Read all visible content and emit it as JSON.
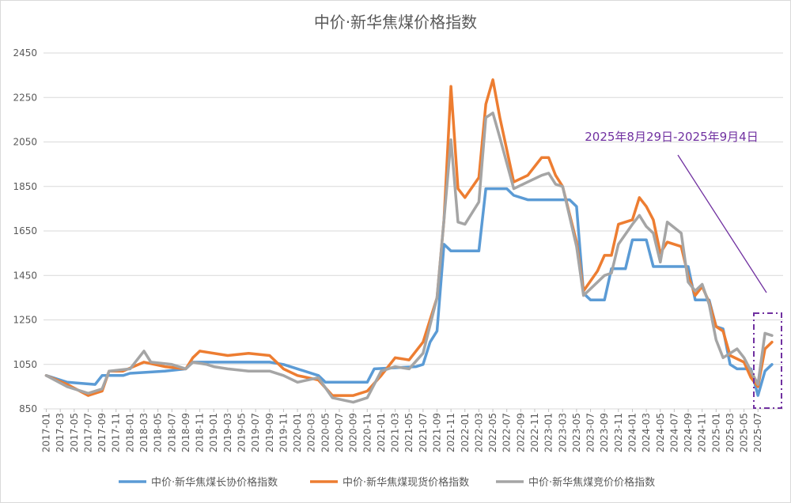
{
  "chart_data": {
    "type": "line",
    "title": "中价·新华焦煤价格指数",
    "xlabel": "",
    "ylabel": "",
    "ylim": [
      850,
      2450
    ],
    "yticks": [
      850,
      1050,
      1250,
      1450,
      1650,
      1850,
      2050,
      2250,
      2450
    ],
    "grid": "horizontal",
    "legend_position": "bottom",
    "x_ticks": [
      "2017-01",
      "2017-03",
      "2017-05",
      "2017-07",
      "2017-09",
      "2017-11",
      "2018-01",
      "2018-03",
      "2018-05",
      "2018-07",
      "2018-09",
      "2018-11",
      "2019-01",
      "2019-03",
      "2019-05",
      "2019-07",
      "2019-09",
      "2019-11",
      "2020-01",
      "2020-03",
      "2020-05",
      "2020-07",
      "2020-09",
      "2020-11",
      "2021-01",
      "2021-03",
      "2021-05",
      "2021-07",
      "2021-09",
      "2021-11",
      "2022-01",
      "2022-03",
      "2022-05",
      "2022-07",
      "2022-09",
      "2022-11",
      "2023-01",
      "2023-03",
      "2023-05",
      "2023-07",
      "2023-09",
      "2023-11",
      "2024-01",
      "2024-03",
      "2024-05",
      "2024-07",
      "2024-09",
      "2024-11",
      "2025-01",
      "2025-03",
      "2025-05",
      "2025-07"
    ],
    "annotation": "2025年8月29日-2025年9月4日",
    "series": [
      {
        "name": "中价·新华焦煤长协价格指数",
        "color": "#5B9BD5",
        "points": [
          [
            "2017-01",
            1000
          ],
          [
            "2017-04",
            970
          ],
          [
            "2017-08",
            960
          ],
          [
            "2017-09",
            1000
          ],
          [
            "2017-12",
            1000
          ],
          [
            "2018-01",
            1010
          ],
          [
            "2018-06",
            1020
          ],
          [
            "2018-09",
            1030
          ],
          [
            "2018-10",
            1060
          ],
          [
            "2019-06",
            1060
          ],
          [
            "2019-09",
            1060
          ],
          [
            "2019-11",
            1050
          ],
          [
            "2020-01",
            1030
          ],
          [
            "2020-04",
            1000
          ],
          [
            "2020-05",
            970
          ],
          [
            "2020-11",
            970
          ],
          [
            "2020-12",
            1030
          ],
          [
            "2021-06",
            1040
          ],
          [
            "2021-07",
            1050
          ],
          [
            "2021-08",
            1150
          ],
          [
            "2021-09",
            1200
          ],
          [
            "2021-10",
            1590
          ],
          [
            "2021-11",
            1560
          ],
          [
            "2022-03",
            1560
          ],
          [
            "2022-04",
            1840
          ],
          [
            "2022-07",
            1840
          ],
          [
            "2022-08",
            1810
          ],
          [
            "2022-10",
            1790
          ],
          [
            "2023-04",
            1790
          ],
          [
            "2023-05",
            1760
          ],
          [
            "2023-06",
            1370
          ],
          [
            "2023-07",
            1340
          ],
          [
            "2023-09",
            1340
          ],
          [
            "2023-10",
            1480
          ],
          [
            "2023-12",
            1480
          ],
          [
            "2024-01",
            1610
          ],
          [
            "2024-03",
            1610
          ],
          [
            "2024-04",
            1490
          ],
          [
            "2024-09",
            1490
          ],
          [
            "2024-10",
            1340
          ],
          [
            "2024-12",
            1340
          ],
          [
            "2025-01",
            1220
          ],
          [
            "2025-02",
            1210
          ],
          [
            "2025-03",
            1050
          ],
          [
            "2025-04",
            1030
          ],
          [
            "2025-06",
            1030
          ],
          [
            "2025-07",
            910
          ],
          [
            "2025-08",
            1020
          ],
          [
            "2025-09",
            1050
          ]
        ]
      },
      {
        "name": "中价·新华焦煤现货价格指数",
        "color": "#ED7D31",
        "points": [
          [
            "2017-01",
            1000
          ],
          [
            "2017-04",
            960
          ],
          [
            "2017-07",
            910
          ],
          [
            "2017-09",
            930
          ],
          [
            "2017-10",
            1020
          ],
          [
            "2017-12",
            1020
          ],
          [
            "2018-03",
            1060
          ],
          [
            "2018-06",
            1040
          ],
          [
            "2018-09",
            1030
          ],
          [
            "2018-10",
            1080
          ],
          [
            "2018-11",
            1110
          ],
          [
            "2019-03",
            1090
          ],
          [
            "2019-06",
            1100
          ],
          [
            "2019-09",
            1090
          ],
          [
            "2019-11",
            1030
          ],
          [
            "2020-01",
            1000
          ],
          [
            "2020-04",
            980
          ],
          [
            "2020-06",
            910
          ],
          [
            "2020-09",
            910
          ],
          [
            "2020-11",
            930
          ],
          [
            "2021-01",
            1000
          ],
          [
            "2021-03",
            1080
          ],
          [
            "2021-05",
            1070
          ],
          [
            "2021-07",
            1150
          ],
          [
            "2021-09",
            1350
          ],
          [
            "2021-10",
            1700
          ],
          [
            "2021-11",
            2300
          ],
          [
            "2021-12",
            1840
          ],
          [
            "2022-01",
            1800
          ],
          [
            "2022-03",
            1890
          ],
          [
            "2022-04",
            2220
          ],
          [
            "2022-05",
            2330
          ],
          [
            "2022-06",
            2160
          ],
          [
            "2022-08",
            1870
          ],
          [
            "2022-10",
            1900
          ],
          [
            "2022-12",
            1980
          ],
          [
            "2023-01",
            1980
          ],
          [
            "2023-02",
            1900
          ],
          [
            "2023-03",
            1850
          ],
          [
            "2023-05",
            1600
          ],
          [
            "2023-06",
            1380
          ],
          [
            "2023-08",
            1470
          ],
          [
            "2023-09",
            1540
          ],
          [
            "2023-10",
            1540
          ],
          [
            "2023-11",
            1680
          ],
          [
            "2024-01",
            1700
          ],
          [
            "2024-02",
            1800
          ],
          [
            "2024-03",
            1760
          ],
          [
            "2024-04",
            1700
          ],
          [
            "2024-05",
            1550
          ],
          [
            "2024-06",
            1600
          ],
          [
            "2024-08",
            1580
          ],
          [
            "2024-09",
            1450
          ],
          [
            "2024-10",
            1360
          ],
          [
            "2024-11",
            1400
          ],
          [
            "2024-12",
            1330
          ],
          [
            "2025-01",
            1220
          ],
          [
            "2025-02",
            1200
          ],
          [
            "2025-03",
            1090
          ],
          [
            "2025-05",
            1060
          ],
          [
            "2025-06",
            990
          ],
          [
            "2025-07",
            950
          ],
          [
            "2025-08",
            1120
          ],
          [
            "2025-09",
            1150
          ]
        ]
      },
      {
        "name": "中价·新华焦煤竞价价格指数",
        "color": "#A5A5A5",
        "points": [
          [
            "2017-01",
            1000
          ],
          [
            "2017-04",
            950
          ],
          [
            "2017-07",
            920
          ],
          [
            "2017-09",
            940
          ],
          [
            "2017-10",
            1020
          ],
          [
            "2018-01",
            1030
          ],
          [
            "2018-03",
            1110
          ],
          [
            "2018-04",
            1060
          ],
          [
            "2018-07",
            1050
          ],
          [
            "2018-09",
            1030
          ],
          [
            "2018-10",
            1060
          ],
          [
            "2018-12",
            1050
          ],
          [
            "2019-01",
            1040
          ],
          [
            "2019-03",
            1030
          ],
          [
            "2019-06",
            1020
          ],
          [
            "2019-09",
            1020
          ],
          [
            "2019-11",
            1000
          ],
          [
            "2020-01",
            970
          ],
          [
            "2020-04",
            990
          ],
          [
            "2020-06",
            900
          ],
          [
            "2020-09",
            880
          ],
          [
            "2020-11",
            900
          ],
          [
            "2021-01",
            1020
          ],
          [
            "2021-03",
            1040
          ],
          [
            "2021-05",
            1030
          ],
          [
            "2021-07",
            1100
          ],
          [
            "2021-09",
            1350
          ],
          [
            "2021-10",
            1700
          ],
          [
            "2021-11",
            2060
          ],
          [
            "2021-12",
            1690
          ],
          [
            "2022-01",
            1680
          ],
          [
            "2022-02",
            1730
          ],
          [
            "2022-03",
            1780
          ],
          [
            "2022-04",
            2160
          ],
          [
            "2022-05",
            2180
          ],
          [
            "2022-06",
            2070
          ],
          [
            "2022-08",
            1840
          ],
          [
            "2022-10",
            1870
          ],
          [
            "2022-12",
            1900
          ],
          [
            "2023-01",
            1910
          ],
          [
            "2023-02",
            1860
          ],
          [
            "2023-03",
            1850
          ],
          [
            "2023-05",
            1580
          ],
          [
            "2023-06",
            1360
          ],
          [
            "2023-08",
            1420
          ],
          [
            "2023-09",
            1450
          ],
          [
            "2023-10",
            1460
          ],
          [
            "2023-11",
            1590
          ],
          [
            "2024-01",
            1680
          ],
          [
            "2024-02",
            1720
          ],
          [
            "2024-03",
            1670
          ],
          [
            "2024-04",
            1640
          ],
          [
            "2024-05",
            1510
          ],
          [
            "2024-06",
            1690
          ],
          [
            "2024-08",
            1640
          ],
          [
            "2024-09",
            1420
          ],
          [
            "2024-10",
            1380
          ],
          [
            "2024-11",
            1410
          ],
          [
            "2024-12",
            1320
          ],
          [
            "2025-01",
            1160
          ],
          [
            "2025-02",
            1080
          ],
          [
            "2025-03",
            1100
          ],
          [
            "2025-04",
            1120
          ],
          [
            "2025-05",
            1080
          ],
          [
            "2025-06",
            1020
          ],
          [
            "2025-07",
            960
          ],
          [
            "2025-08",
            1190
          ],
          [
            "2025-09",
            1180
          ]
        ]
      }
    ]
  }
}
